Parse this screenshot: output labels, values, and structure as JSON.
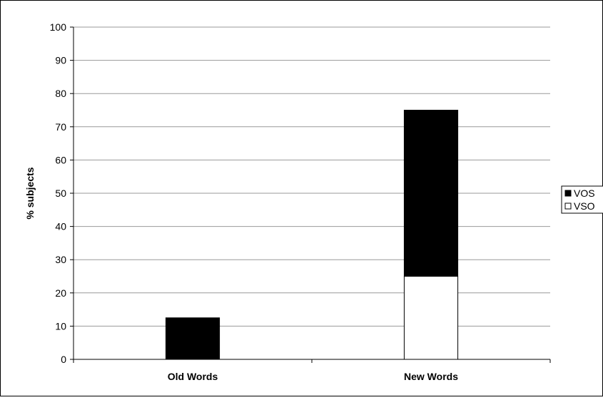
{
  "chart_data": {
    "type": "bar",
    "stacked": true,
    "categories": [
      "Old Words",
      "New Words"
    ],
    "series": [
      {
        "name": "VSO",
        "color": "#ffffff",
        "values": [
          0,
          25
        ]
      },
      {
        "name": "VOS",
        "color": "#000000",
        "values": [
          12.5,
          50
        ]
      }
    ],
    "ylabel": "% subjects",
    "ylim": [
      0,
      100
    ],
    "yticks": [
      0,
      10,
      20,
      30,
      40,
      50,
      60,
      70,
      80,
      90,
      100
    ],
    "grid": true,
    "legend": {
      "placement": "right",
      "entries": [
        "VOS",
        "VSO"
      ]
    }
  }
}
